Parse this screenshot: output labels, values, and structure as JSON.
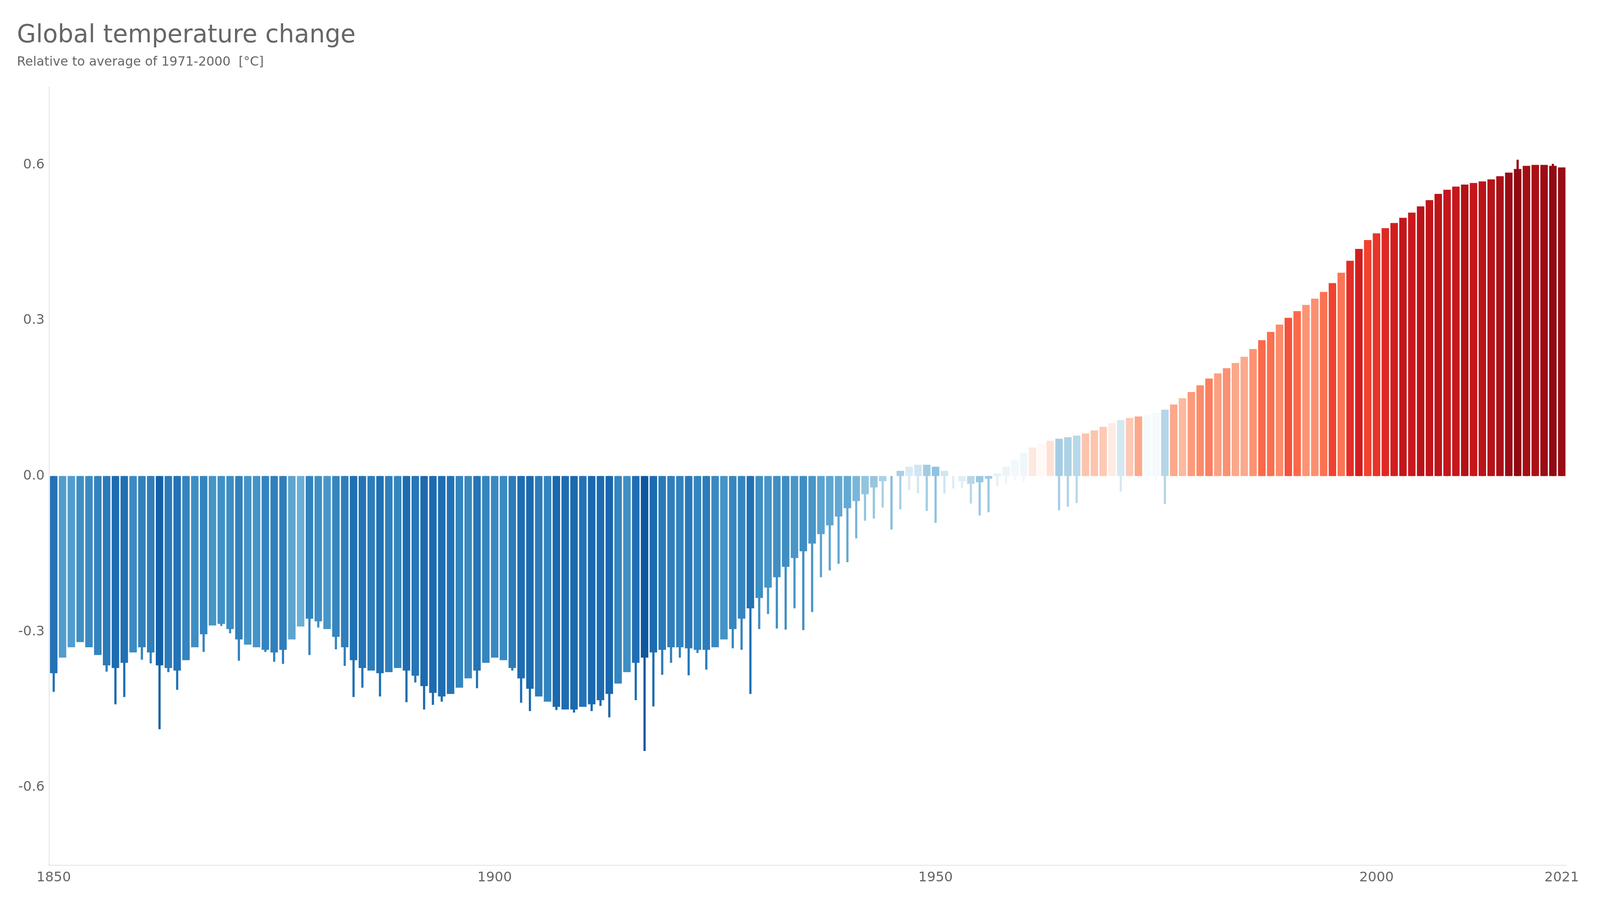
{
  "chart_data": {
    "type": "bar",
    "title": "Global temperature change",
    "subtitle": "Relative to average of 1971-2000  [°C]",
    "x": [
      1850,
      1851,
      1852,
      1853,
      1854,
      1855,
      1856,
      1857,
      1858,
      1859,
      1860,
      1861,
      1862,
      1863,
      1864,
      1865,
      1866,
      1867,
      1868,
      1869,
      1870,
      1871,
      1872,
      1873,
      1874,
      1875,
      1876,
      1877,
      1878,
      1879,
      1880,
      1881,
      1882,
      1883,
      1884,
      1885,
      1886,
      1887,
      1888,
      1889,
      1890,
      1891,
      1892,
      1893,
      1894,
      1895,
      1896,
      1897,
      1898,
      1899,
      1900,
      1901,
      1902,
      1903,
      1904,
      1905,
      1906,
      1907,
      1908,
      1909,
      1910,
      1911,
      1912,
      1913,
      1914,
      1915,
      1916,
      1917,
      1918,
      1919,
      1920,
      1921,
      1922,
      1923,
      1924,
      1925,
      1926,
      1927,
      1928,
      1929,
      1930,
      1931,
      1932,
      1933,
      1934,
      1935,
      1936,
      1937,
      1938,
      1939,
      1940,
      1941,
      1942,
      1943,
      1944,
      1945,
      1946,
      1947,
      1948,
      1949,
      1950,
      1951,
      1952,
      1953,
      1954,
      1955,
      1956,
      1957,
      1958,
      1959,
      1960,
      1961,
      1962,
      1963,
      1964,
      1965,
      1966,
      1967,
      1968,
      1969,
      1970,
      1971,
      1972,
      1973,
      1974,
      1975,
      1976,
      1977,
      1978,
      1979,
      1980,
      1981,
      1982,
      1983,
      1984,
      1985,
      1986,
      1987,
      1988,
      1989,
      1990,
      1991,
      1992,
      1993,
      1994,
      1995,
      1996,
      1997,
      1998,
      1999,
      2000,
      2001,
      2002,
      2003,
      2004,
      2005,
      2006,
      2007,
      2008,
      2009,
      2010,
      2011,
      2012,
      2013,
      2014,
      2015,
      2016,
      2017,
      2018,
      2019,
      2020,
      2021
    ],
    "series": [
      {
        "values": [
          -0.38,
          -0.35,
          -0.33,
          -0.32,
          -0.33,
          -0.345,
          -0.365,
          -0.37,
          -0.36,
          -0.34,
          -0.33,
          -0.34,
          -0.365,
          -0.37,
          -0.375,
          -0.355,
          -0.33,
          -0.305,
          -0.288,
          -0.285,
          -0.295,
          -0.315,
          -0.325,
          -0.33,
          -0.335,
          -0.34,
          -0.335,
          -0.315,
          -0.29,
          -0.275,
          -0.28,
          -0.295,
          -0.31,
          -0.33,
          -0.355,
          -0.37,
          -0.375,
          -0.38,
          -0.378,
          -0.37,
          -0.375,
          -0.385,
          -0.405,
          -0.418,
          -0.425,
          -0.42,
          -0.408,
          -0.39,
          -0.375,
          -0.36,
          -0.35,
          -0.355,
          -0.37,
          -0.39,
          -0.41,
          -0.425,
          -0.435,
          -0.445,
          -0.45,
          -0.45,
          -0.445,
          -0.44,
          -0.432,
          -0.42,
          -0.4,
          -0.378,
          -0.36,
          -0.35,
          -0.34,
          -0.335,
          -0.33,
          -0.33,
          -0.332,
          -0.335,
          -0.335,
          -0.33,
          -0.315,
          -0.295,
          -0.275,
          -0.255,
          -0.235,
          -0.215,
          -0.195,
          -0.175,
          -0.158,
          -0.145,
          -0.13,
          -0.112,
          -0.095,
          -0.078,
          -0.062,
          -0.048,
          -0.035,
          -0.022,
          -0.01,
          0.0,
          0.01,
          0.018,
          0.022,
          0.022,
          0.018,
          0.01,
          0.0,
          -0.01,
          -0.015,
          -0.012,
          -0.005,
          0.005,
          0.018,
          0.032,
          0.045,
          0.055,
          0.062,
          0.068,
          0.072,
          0.075,
          0.078,
          0.082,
          0.088,
          0.095,
          0.102,
          0.108,
          0.112,
          0.115,
          0.118,
          0.122,
          0.128,
          0.138,
          0.15,
          0.162,
          0.175,
          0.188,
          0.198,
          0.208,
          0.218,
          0.23,
          0.245,
          0.262,
          0.278,
          0.292,
          0.305,
          0.318,
          0.33,
          0.342,
          0.355,
          0.372,
          0.392,
          0.415,
          0.438,
          0.455,
          0.468,
          0.478,
          0.488,
          0.498,
          0.508,
          0.52,
          0.532,
          0.544,
          0.552,
          0.558,
          0.562,
          0.565,
          0.568,
          0.572,
          0.578,
          0.585,
          0.592,
          0.598,
          0.6,
          0.6,
          0.598,
          0.595
        ]
      },
      {
        "values": [
          -0.416,
          -0.223,
          -0.223,
          -0.298,
          -0.313,
          -0.342,
          -0.377,
          -0.44,
          -0.426,
          -0.309,
          -0.354,
          -0.361,
          -0.488,
          -0.378,
          -0.412,
          -0.339,
          -0.296,
          -0.339,
          -0.267,
          -0.289,
          -0.303,
          -0.356,
          -0.271,
          -0.272,
          -0.339,
          -0.358,
          -0.362,
          -0.189,
          -0.138,
          -0.345,
          -0.292,
          -0.261,
          -0.334,
          -0.366,
          -0.426,
          -0.408,
          -0.37,
          -0.425,
          -0.36,
          -0.337,
          -0.436,
          -0.398,
          -0.45,
          -0.441,
          -0.435,
          -0.413,
          -0.337,
          -0.32,
          -0.409,
          -0.337,
          -0.32,
          -0.309,
          -0.375,
          -0.437,
          -0.453,
          -0.373,
          -0.339,
          -0.451,
          -0.436,
          -0.456,
          -0.413,
          -0.453,
          -0.443,
          -0.465,
          -0.334,
          -0.293,
          -0.432,
          -0.53,
          -0.444,
          -0.383,
          -0.36,
          -0.35,
          -0.384,
          -0.341,
          -0.373,
          -0.32,
          -0.272,
          -0.332,
          -0.335,
          -0.42,
          -0.295,
          -0.266,
          -0.294,
          -0.296,
          -0.255,
          -0.297,
          -0.262,
          -0.195,
          -0.182,
          -0.169,
          -0.166,
          -0.12,
          -0.086,
          -0.082,
          -0.061,
          -0.103,
          -0.064,
          -0.027,
          -0.033,
          -0.067,
          -0.09,
          -0.034,
          -0.024,
          -0.023,
          -0.053,
          -0.076,
          -0.07,
          -0.019,
          -0.014,
          -0.009,
          -0.011,
          0.023,
          0.007,
          0.031,
          -0.066,
          -0.059,
          -0.052,
          0.061,
          0.06,
          0.055,
          0.021,
          -0.03,
          0.056,
          0.103,
          -0.007,
          -0.007,
          -0.054,
          0.103,
          0.073,
          0.125,
          0.153,
          0.175,
          0.116,
          0.143,
          0.103,
          0.1,
          0.138,
          0.212,
          0.2,
          0.153,
          0.245,
          0.21,
          0.136,
          0.145,
          0.196,
          0.27,
          0.189,
          0.33,
          0.401,
          0.27,
          0.308,
          0.35,
          0.397,
          0.451,
          0.422,
          0.488,
          0.462,
          0.468,
          0.445,
          0.443,
          0.513,
          0.44,
          0.484,
          0.498,
          0.538,
          0.584,
          0.61,
          0.563,
          0.538,
          0.574,
          0.602,
          0.588
        ]
      }
    ],
    "xlim": [
      1849.5,
      2021.5
    ],
    "xticks": [
      1850,
      1900,
      1950,
      2000,
      2021
    ],
    "ylim": [
      -0.75,
      0.75
    ],
    "yticks": [
      -0.6,
      -0.3,
      {
        "value": 0,
        "label": "0.0"
      },
      0.3,
      0.6
    ],
    "grid": false
  }
}
